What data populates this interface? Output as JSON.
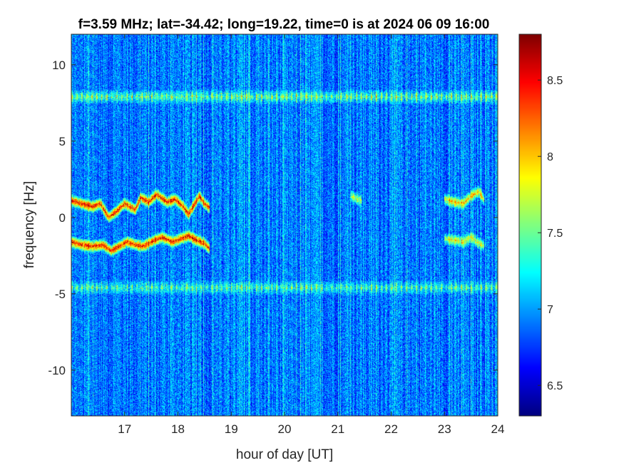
{
  "chart_data": {
    "type": "heatmap",
    "title": "f=3.59 MHz;  lat=-34.42; long=19.22, time=0 is at 2024 06 09 16:00",
    "xlabel": "hour of day [UT]",
    "ylabel": "frequency [Hz]",
    "xlim": [
      16,
      24
    ],
    "ylim": [
      -13,
      12
    ],
    "xticks": [
      17,
      18,
      19,
      20,
      21,
      22,
      23,
      24
    ],
    "yticks": [
      -10,
      -5,
      0,
      5,
      10
    ],
    "colormap": "jet",
    "background_level": 6.9,
    "colorbar": {
      "range": [
        6.3,
        8.8
      ],
      "ticks": [
        6.5,
        7,
        7.5,
        8,
        8.5
      ]
    },
    "features": [
      {
        "name": "persistent band upper",
        "x_range": [
          16,
          24
        ],
        "freq_center": 7.9,
        "freq_halfwidth": 0.5,
        "level": 7.9
      },
      {
        "name": "persistent band lower",
        "x_range": [
          16,
          24
        ],
        "freq_center": -4.6,
        "freq_halfwidth": 0.5,
        "level": 7.7
      },
      {
        "name": "trace upper early",
        "level": 8.6,
        "points": [
          [
            16.0,
            1.1
          ],
          [
            16.2,
            0.9
          ],
          [
            16.4,
            0.7
          ],
          [
            16.55,
            0.9
          ],
          [
            16.7,
            0.0
          ],
          [
            16.85,
            0.4
          ],
          [
            17.0,
            0.9
          ],
          [
            17.2,
            0.5
          ],
          [
            17.3,
            1.3
          ],
          [
            17.45,
            1.0
          ],
          [
            17.6,
            1.5
          ],
          [
            17.8,
            1.0
          ],
          [
            17.95,
            1.2
          ],
          [
            18.1,
            0.7
          ],
          [
            18.2,
            0.2
          ],
          [
            18.3,
            0.8
          ],
          [
            18.4,
            1.4
          ],
          [
            18.5,
            0.9
          ],
          [
            18.6,
            0.6
          ]
        ]
      },
      {
        "name": "trace lower early",
        "level": 8.6,
        "points": [
          [
            16.0,
            -1.6
          ],
          [
            16.2,
            -1.8
          ],
          [
            16.4,
            -1.9
          ],
          [
            16.6,
            -1.8
          ],
          [
            16.75,
            -2.2
          ],
          [
            16.9,
            -1.9
          ],
          [
            17.05,
            -1.6
          ],
          [
            17.2,
            -1.8
          ],
          [
            17.35,
            -1.9
          ],
          [
            17.5,
            -1.6
          ],
          [
            17.7,
            -1.3
          ],
          [
            17.9,
            -1.6
          ],
          [
            18.05,
            -1.4
          ],
          [
            18.2,
            -1.2
          ],
          [
            18.35,
            -1.5
          ],
          [
            18.5,
            -1.7
          ],
          [
            18.6,
            -2.1
          ]
        ]
      },
      {
        "name": "trace upper late",
        "level": 8.1,
        "points": [
          [
            23.0,
            1.2
          ],
          [
            23.2,
            1.0
          ],
          [
            23.35,
            0.9
          ],
          [
            23.5,
            1.4
          ],
          [
            23.65,
            1.7
          ],
          [
            23.75,
            1.1
          ]
        ]
      },
      {
        "name": "trace lower late",
        "level": 7.9,
        "points": [
          [
            23.0,
            -1.4
          ],
          [
            23.2,
            -1.5
          ],
          [
            23.35,
            -1.6
          ],
          [
            23.5,
            -1.3
          ],
          [
            23.65,
            -1.7
          ],
          [
            23.75,
            -1.9
          ]
        ]
      },
      {
        "name": "short trace 21h",
        "level": 7.8,
        "points": [
          [
            21.25,
            1.4
          ],
          [
            21.35,
            1.2
          ],
          [
            21.45,
            1.1
          ]
        ]
      }
    ]
  }
}
